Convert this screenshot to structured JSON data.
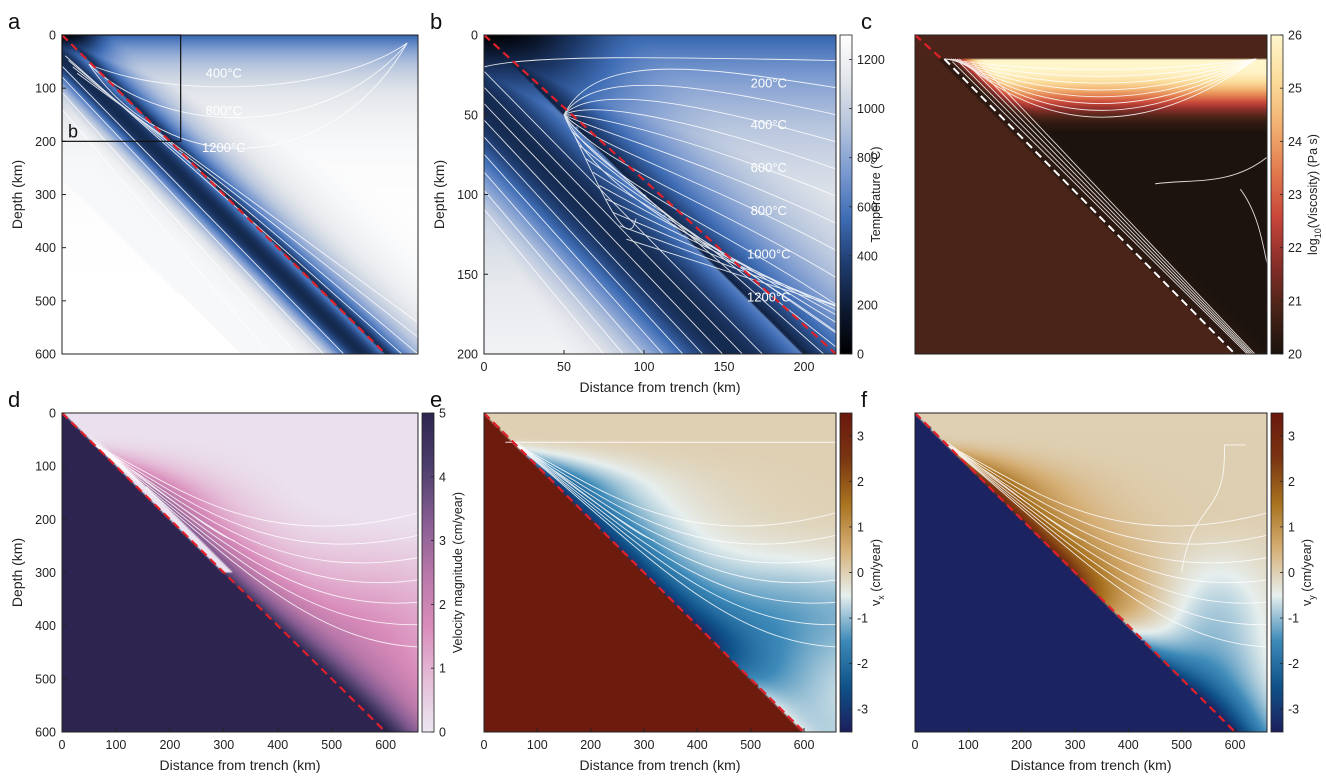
{
  "panels": [
    {
      "id": "a",
      "label": "a",
      "ylabel": "Depth (km)",
      "xlabel": "",
      "field": "tempA",
      "xlim": [
        0,
        660
      ],
      "ylim": [
        0,
        600
      ],
      "yticks": [
        0,
        100,
        200,
        300,
        400,
        500,
        600
      ],
      "xticks": [],
      "contour_labels": [
        "400°C",
        "800°C",
        "1200°C"
      ],
      "inset_label": "b",
      "inset_box": {
        "x": [
          0,
          220
        ],
        "y": [
          0,
          200
        ]
      }
    },
    {
      "id": "b",
      "label": "b",
      "ylabel": "Depth (km)",
      "xlabel": "Distance from trench (km)",
      "field": "tempB",
      "xlim": [
        0,
        220
      ],
      "ylim": [
        0,
        200
      ],
      "yticks": [
        0,
        50,
        100,
        150,
        200
      ],
      "xticks": [
        0,
        50,
        100,
        150,
        200
      ],
      "contour_labels": [
        "200°C",
        "400°C",
        "600°C",
        "800°C",
        "1000°C",
        "1200°C"
      ],
      "colorbar": {
        "label": "Temperature (°C)",
        "ticks": [
          0,
          200,
          400,
          600,
          800,
          1000,
          1200
        ],
        "min": 0,
        "max": 1300,
        "colors": [
          "#000000",
          "#0d1a33",
          "#1f3d70",
          "#3f6db5",
          "#7b9ad0",
          "#b5c4dd",
          "#e2e5ea",
          "#ffffff"
        ]
      }
    },
    {
      "id": "c",
      "label": "c",
      "ylabel": "",
      "xlabel": "",
      "field": "visc",
      "xlim": [
        0,
        660
      ],
      "ylim": [
        0,
        600
      ],
      "yticks": [],
      "xticks": [],
      "colorbar": {
        "label_main": "log",
        "label_sub": "10",
        "label_rest": "(Viscosity) (Pa s)",
        "ticks": [
          20,
          21,
          22,
          23,
          24,
          25,
          26
        ],
        "min": 20,
        "max": 26,
        "colors": [
          "#1a120d",
          "#4a2418",
          "#8a2e2a",
          "#c8463a",
          "#e27a4e",
          "#f2b070",
          "#fbdc9a",
          "#fff6cc"
        ]
      }
    },
    {
      "id": "d",
      "label": "d",
      "ylabel": "Depth (km)",
      "xlabel": "Distance from trench (km)",
      "field": "vmag",
      "xlim": [
        0,
        660
      ],
      "ylim": [
        0,
        600
      ],
      "yticks": [
        0,
        100,
        200,
        300,
        400,
        500,
        600
      ],
      "xticks": [
        0,
        100,
        200,
        300,
        400,
        500,
        600
      ],
      "colorbar": {
        "label": "Velocity magnitude (cm/year)",
        "ticks": [
          0,
          1,
          2,
          3,
          4,
          5
        ],
        "min": 0,
        "max": 5,
        "colors": [
          "#ece8f2",
          "#e5bcd7",
          "#d98cbb",
          "#b777a8",
          "#855c92",
          "#4c3e6c",
          "#2d2450"
        ]
      }
    },
    {
      "id": "e",
      "label": "e",
      "ylabel": "",
      "xlabel": "Distance from trench (km)",
      "field": "vx",
      "xlim": [
        0,
        660
      ],
      "ylim": [
        0,
        600
      ],
      "yticks": [],
      "xticks": [
        0,
        100,
        200,
        300,
        400,
        500,
        600
      ],
      "colorbar": {
        "label_main": "v",
        "label_sub": "x",
        "label_rest": " (cm/year)",
        "ticks": [
          -3,
          -2,
          -1,
          0,
          1,
          2,
          3
        ],
        "min": -3.5,
        "max": 3.5,
        "colors": [
          "#1c1f5c",
          "#0f5289",
          "#3d8ab9",
          "#e7efee",
          "#d6b077",
          "#a97320",
          "#7a3511",
          "#6a180d"
        ]
      }
    },
    {
      "id": "f",
      "label": "f",
      "ylabel": "",
      "xlabel": "Distance from trench (km)",
      "field": "vy",
      "xlim": [
        0,
        660
      ],
      "ylim": [
        0,
        600
      ],
      "yticks": [],
      "xticks": [
        0,
        100,
        200,
        300,
        400,
        500,
        600
      ],
      "colorbar": {
        "label_main": "v",
        "label_sub": "y",
        "label_rest": " (cm/year)",
        "ticks": [
          -3,
          -2,
          -1,
          0,
          1,
          2,
          3
        ],
        "min": -3.5,
        "max": 3.5,
        "colors": [
          "#1c1f5c",
          "#0f5289",
          "#3d8ab9",
          "#e7efee",
          "#d6b077",
          "#a97320",
          "#7a3511",
          "#6a180d"
        ]
      }
    }
  ],
  "colors": {
    "slab_line": "#e0202a",
    "contour": "#ffffff",
    "axis": "#222222"
  },
  "chart_data": [
    {
      "type": "heatmap",
      "panel": "a",
      "title": "",
      "xlabel": "",
      "ylabel": "Depth (km)",
      "xlim": [
        0,
        660
      ],
      "ylim": [
        0,
        600
      ],
      "grid": false,
      "series": [
        {
          "name": "",
          "x": [
            0,
            600
          ],
          "y": [
            0,
            600
          ]
        }
      ],
      "annotations": [
        "400°C",
        "800°C",
        "1200°C",
        "b"
      ]
    },
    {
      "type": "heatmap",
      "panel": "b",
      "title": "",
      "xlabel": "Distance from trench (km)",
      "ylabel": "Depth (km)",
      "xlim": [
        0,
        220
      ],
      "ylim": [
        0,
        200
      ],
      "grid": false,
      "series": [
        {
          "name": "",
          "x": [
            0,
            200
          ],
          "y": [
            0,
            200
          ]
        }
      ],
      "annotations": [
        "200°C",
        "400°C",
        "600°C",
        "800°C",
        "1000°C",
        "1200°C"
      ],
      "colorbar": {
        "label": "Temperature (°C)",
        "range": [
          0,
          1300
        ]
      }
    },
    {
      "type": "heatmap",
      "panel": "c",
      "title": "",
      "xlabel": "",
      "ylabel": "",
      "xlim": [
        0,
        660
      ],
      "ylim": [
        0,
        600
      ],
      "grid": false,
      "colorbar": {
        "label": "log10(Viscosity) (Pa s)",
        "range": [
          20,
          26
        ]
      }
    },
    {
      "type": "heatmap",
      "panel": "d",
      "title": "",
      "xlabel": "Distance from trench (km)",
      "ylabel": "Depth (km)",
      "xlim": [
        0,
        660
      ],
      "ylim": [
        0,
        600
      ],
      "grid": false,
      "series": [
        {
          "name": "",
          "x": [
            0,
            600
          ],
          "y": [
            0,
            600
          ]
        }
      ],
      "colorbar": {
        "label": "Velocity magnitude (cm/year)",
        "range": [
          0,
          5
        ]
      }
    },
    {
      "type": "heatmap",
      "panel": "e",
      "title": "",
      "xlabel": "Distance from trench (km)",
      "ylabel": "",
      "xlim": [
        0,
        660
      ],
      "ylim": [
        0,
        600
      ],
      "grid": false,
      "series": [
        {
          "name": "",
          "x": [
            0,
            600
          ],
          "y": [
            0,
            600
          ]
        }
      ],
      "colorbar": {
        "label": "vx (cm/year)",
        "range": [
          -3.5,
          3.5
        ]
      }
    },
    {
      "type": "heatmap",
      "panel": "f",
      "title": "",
      "xlabel": "Distance from trench (km)",
      "ylabel": "",
      "xlim": [
        0,
        660
      ],
      "ylim": [
        0,
        600
      ],
      "grid": false,
      "series": [
        {
          "name": "",
          "x": [
            0,
            600
          ],
          "y": [
            0,
            600
          ]
        }
      ],
      "colorbar": {
        "label": "vy (cm/year)",
        "range": [
          -3.5,
          3.5
        ]
      }
    }
  ]
}
